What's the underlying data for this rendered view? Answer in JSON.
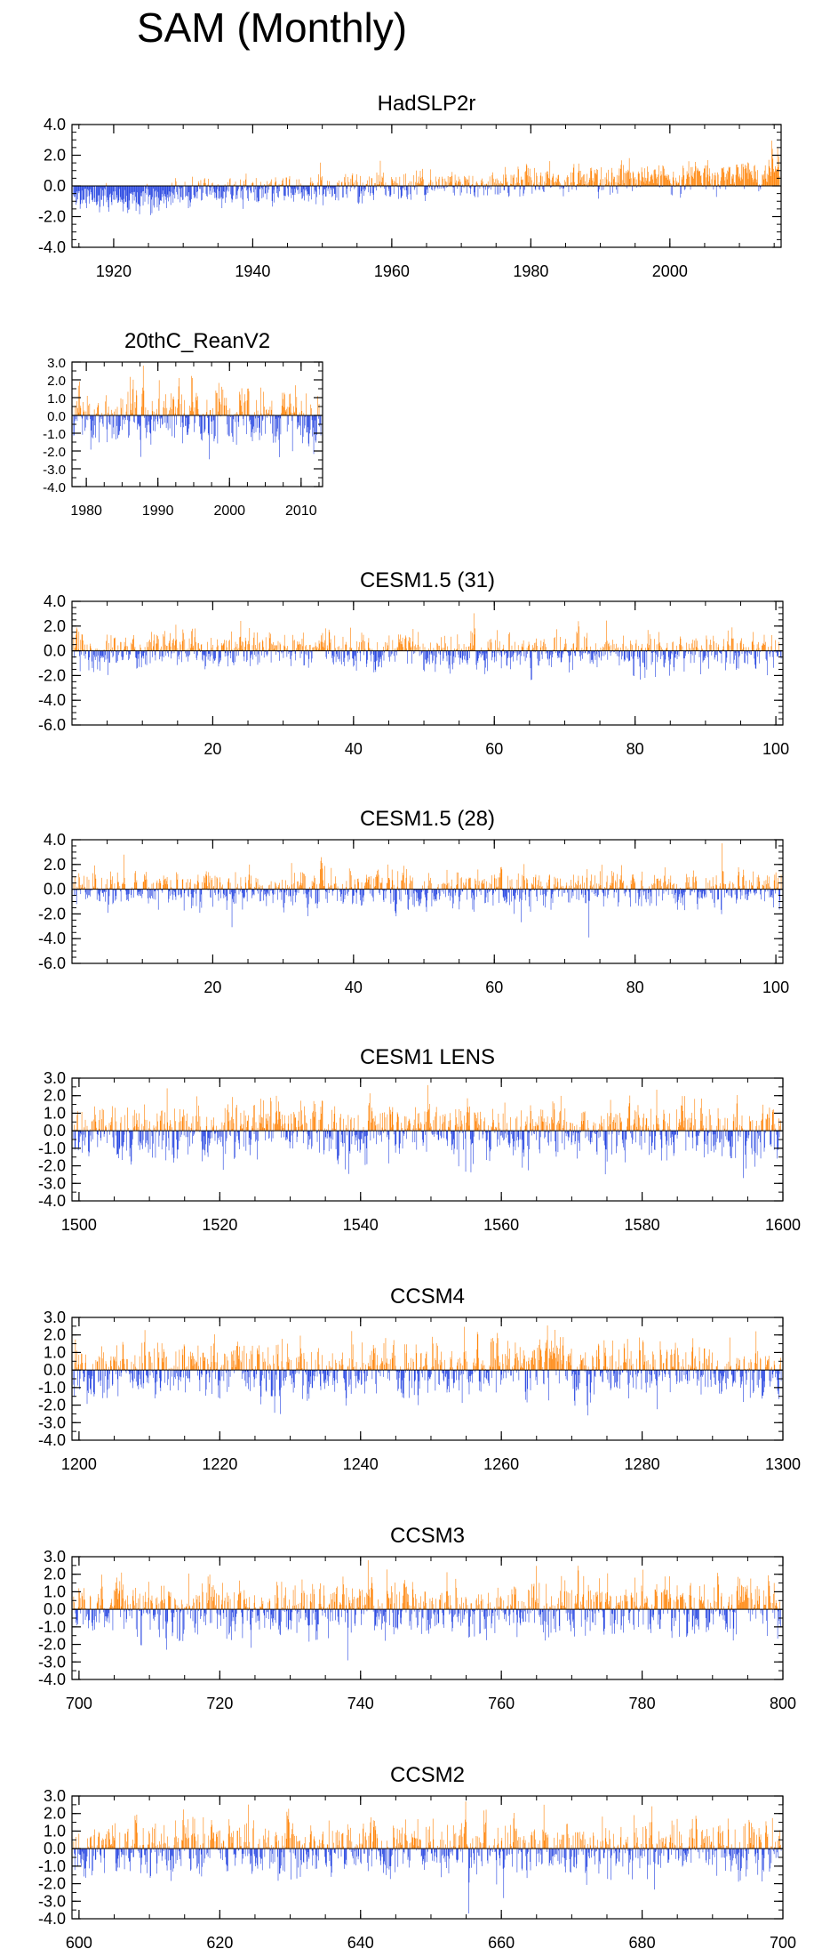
{
  "figure_title": "SAM (Monthly)",
  "colors": {
    "positive": "#ff8000",
    "negative": "#1f3fe0",
    "axis": "#000000"
  },
  "chart_data": [
    {
      "type": "bar",
      "title": "HadSLP2r",
      "seed": 11,
      "xlim": [
        1914,
        2016
      ],
      "ylim": [
        -4.0,
        4.0
      ],
      "xticks": [
        1920,
        1940,
        1960,
        1980,
        2000
      ],
      "xticklabels": [
        "1920",
        "1940",
        "1960",
        "1980",
        "2000"
      ],
      "yticks": [
        -4,
        -2,
        0,
        2,
        4
      ],
      "yticklabels": [
        "-4.0",
        "-2.0",
        "0.0",
        "2.0",
        "4.0"
      ],
      "yminor": 0.5,
      "months": 1200,
      "trend": [
        -1.5,
        1.6
      ],
      "noise": 0.55,
      "label_size": "large"
    },
    {
      "type": "bar",
      "title": "20thC_ReanV2",
      "seed": 23,
      "xlim": [
        1978,
        2013
      ],
      "ylim": [
        -4.0,
        3.0
      ],
      "xticks": [
        1980,
        1990,
        2000,
        2010
      ],
      "xticklabels": [
        "1980",
        "1990",
        "2000",
        "2010"
      ],
      "yticks": [
        -4,
        -3,
        -2,
        -1,
        0,
        1,
        2,
        3
      ],
      "yticklabels": [
        "-4.0",
        "-3.0",
        "-2.0",
        "-1.0",
        "0.0",
        "1.0",
        "2.0",
        "3.0"
      ],
      "yminor": 0.5,
      "months": 420,
      "trend": [
        0,
        0
      ],
      "noise": 1.0,
      "label_size": "small"
    },
    {
      "type": "bar",
      "title": "CESM1.5 (31)",
      "seed": 31,
      "xlim": [
        0,
        101
      ],
      "ylim": [
        -6.0,
        4.0
      ],
      "xticks": [
        20,
        40,
        60,
        80,
        100
      ],
      "xticklabels": [
        "20",
        "40",
        "60",
        "80",
        "100"
      ],
      "yticks": [
        -6,
        -4,
        -2,
        0,
        2,
        4
      ],
      "yticklabels": [
        "-6.0",
        "-4.0",
        "-2.0",
        "0.0",
        "2.0",
        "4.0"
      ],
      "yminor": 0.5,
      "months": 1212,
      "trend": [
        0,
        0
      ],
      "noise": 0.9,
      "label_size": "large"
    },
    {
      "type": "bar",
      "title": "CESM1.5 (28)",
      "seed": 28,
      "xlim": [
        0,
        101
      ],
      "ylim": [
        -6.0,
        4.0
      ],
      "xticks": [
        20,
        40,
        60,
        80,
        100
      ],
      "xticklabels": [
        "20",
        "40",
        "60",
        "80",
        "100"
      ],
      "yticks": [
        -6,
        -4,
        -2,
        0,
        2,
        4
      ],
      "yticklabels": [
        "-6.0",
        "-4.0",
        "-2.0",
        "0.0",
        "2.0",
        "4.0"
      ],
      "yminor": 0.5,
      "months": 1212,
      "trend": [
        0,
        0
      ],
      "noise": 0.9,
      "label_size": "large"
    },
    {
      "type": "bar",
      "title": "CESM1 LENS",
      "seed": 47,
      "xlim": [
        1499,
        1600
      ],
      "ylim": [
        -4.0,
        3.0
      ],
      "xticks": [
        1500,
        1520,
        1540,
        1560,
        1580,
        1600
      ],
      "xticklabels": [
        "1500",
        "1520",
        "1540",
        "1560",
        "1580",
        "1600"
      ],
      "yticks": [
        -4,
        -3,
        -2,
        -1,
        0,
        1,
        2,
        3
      ],
      "yticklabels": [
        "-4.0",
        "-3.0",
        "-2.0",
        "-1.0",
        "0.0",
        "1.0",
        "2.0",
        "3.0"
      ],
      "yminor": 0.5,
      "months": 1212,
      "trend": [
        0,
        0
      ],
      "noise": 0.95,
      "label_size": "large"
    },
    {
      "type": "bar",
      "title": "CCSM4",
      "seed": 53,
      "xlim": [
        1199,
        1300
      ],
      "ylim": [
        -4.0,
        3.0
      ],
      "xticks": [
        1200,
        1220,
        1240,
        1260,
        1280,
        1300
      ],
      "xticklabels": [
        "1200",
        "1220",
        "1240",
        "1260",
        "1280",
        "1300"
      ],
      "yticks": [
        -4,
        -3,
        -2,
        -1,
        0,
        1,
        2,
        3
      ],
      "yticklabels": [
        "-4.0",
        "-3.0",
        "-2.0",
        "-1.0",
        "0.0",
        "1.0",
        "2.0",
        "3.0"
      ],
      "yminor": 0.5,
      "months": 1212,
      "trend": [
        0,
        0
      ],
      "noise": 0.95,
      "label_size": "large"
    },
    {
      "type": "bar",
      "title": "CCSM3",
      "seed": 67,
      "xlim": [
        699,
        800
      ],
      "ylim": [
        -4.0,
        3.0
      ],
      "xticks": [
        700,
        720,
        740,
        760,
        780,
        800
      ],
      "xticklabels": [
        "700",
        "720",
        "740",
        "760",
        "780",
        "800"
      ],
      "yticks": [
        -4,
        -3,
        -2,
        -1,
        0,
        1,
        2,
        3
      ],
      "yticklabels": [
        "-4.0",
        "-3.0",
        "-2.0",
        "-1.0",
        "0.0",
        "1.0",
        "2.0",
        "3.0"
      ],
      "yminor": 0.5,
      "months": 1212,
      "trend": [
        0,
        0
      ],
      "noise": 0.95,
      "label_size": "large"
    },
    {
      "type": "bar",
      "title": "CCSM2",
      "seed": 79,
      "xlim": [
        599,
        700
      ],
      "ylim": [
        -4.0,
        3.0
      ],
      "xticks": [
        600,
        620,
        640,
        660,
        680,
        700
      ],
      "xticklabels": [
        "600",
        "620",
        "640",
        "660",
        "680",
        "700"
      ],
      "yticks": [
        -4,
        -3,
        -2,
        -1,
        0,
        1,
        2,
        3
      ],
      "yticklabels": [
        "-4.0",
        "-3.0",
        "-2.0",
        "-1.0",
        "0.0",
        "1.0",
        "2.0",
        "3.0"
      ],
      "yminor": 0.5,
      "months": 1212,
      "trend": [
        0,
        0
      ],
      "noise": 0.95,
      "label_size": "large"
    }
  ]
}
